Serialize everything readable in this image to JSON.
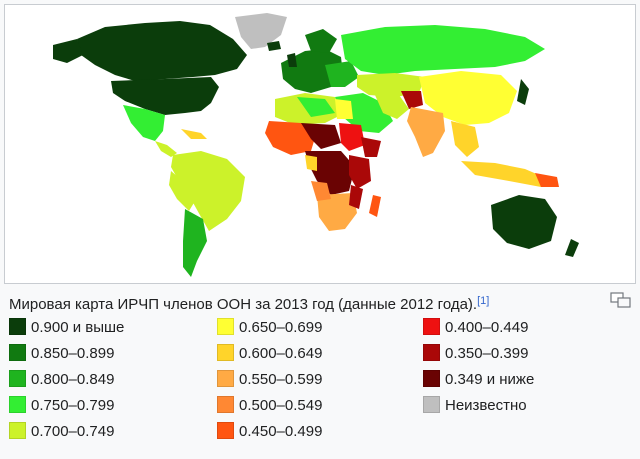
{
  "caption": {
    "text": "Мировая карта ИРЧП членов ООН за 2013 год (данные 2012 года).",
    "ref": "[1]"
  },
  "icons": {
    "enlarge": "magnify-clip-icon"
  },
  "legend": {
    "columns": [
      [
        {
          "label": "0.900 и выше",
          "color": "#0b3d0b"
        },
        {
          "label": "0.850–0.899",
          "color": "#117a11"
        },
        {
          "label": "0.800–0.849",
          "color": "#1fb41f"
        },
        {
          "label": "0.750–0.799",
          "color": "#33ee33"
        },
        {
          "label": "0.700–0.749",
          "color": "#ccf22a"
        }
      ],
      [
        {
          "label": "0.650–0.699",
          "color": "#ffff33"
        },
        {
          "label": "0.600–0.649",
          "color": "#ffd42a"
        },
        {
          "label": "0.550–0.599",
          "color": "#ffaa44"
        },
        {
          "label": "0.500–0.549",
          "color": "#ff8833"
        },
        {
          "label": "0.450–0.499",
          "color": "#ff5511"
        }
      ],
      [
        {
          "label": "0.400–0.449",
          "color": "#ee1111"
        },
        {
          "label": "0.350–0.399",
          "color": "#aa0808"
        },
        {
          "label": "0.349 и ниже",
          "color": "#6a0303"
        },
        {
          "label": "Неизвестно",
          "color": "#bfbfbf"
        }
      ]
    ]
  }
}
